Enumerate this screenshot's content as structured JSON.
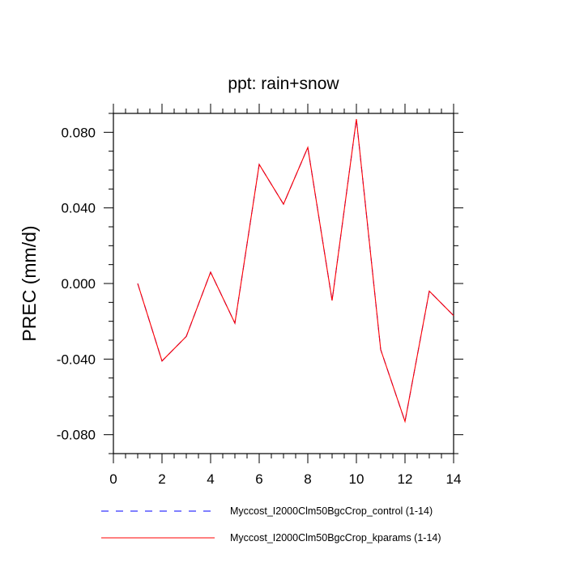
{
  "chart_data": {
    "type": "line",
    "title": "ppt: rain+snow",
    "xlabel": "",
    "ylabel": "PREC  (mm/d)",
    "xlim": [
      0,
      14
    ],
    "ylim": [
      -0.09,
      0.09
    ],
    "x_ticks": [
      0,
      2,
      4,
      6,
      8,
      10,
      12,
      14
    ],
    "x_tick_labels": [
      "0",
      "2",
      "4",
      "6",
      "8",
      "10",
      "12",
      "14"
    ],
    "y_ticks": [
      -0.08,
      -0.04,
      0.0,
      0.04,
      0.08
    ],
    "y_tick_labels": [
      "-0.080",
      "-0.040",
      "0.000",
      "0.040",
      "0.080"
    ],
    "grid": false,
    "legend_position": "bottom",
    "x": [
      1,
      2,
      3,
      4,
      5,
      6,
      7,
      8,
      9,
      10,
      11,
      12,
      13,
      14
    ],
    "series": [
      {
        "name": "Myccost_I2000Clm50BgcCrop_control (1-14)",
        "color": "#0000ff",
        "dash": "dashed",
        "values": [
          0.0,
          -0.041,
          -0.028,
          0.006,
          -0.021,
          0.063,
          0.042,
          0.072,
          -0.009,
          0.087,
          -0.035,
          -0.073,
          -0.004,
          -0.017
        ]
      },
      {
        "name": "Myccost_I2000Clm50BgcCrop_kparams (1-14)",
        "color": "#ff0000",
        "dash": "solid",
        "values": [
          0.0,
          -0.041,
          -0.028,
          0.006,
          -0.021,
          0.063,
          0.042,
          0.072,
          -0.009,
          0.087,
          -0.035,
          -0.073,
          -0.004,
          -0.017
        ]
      }
    ]
  }
}
